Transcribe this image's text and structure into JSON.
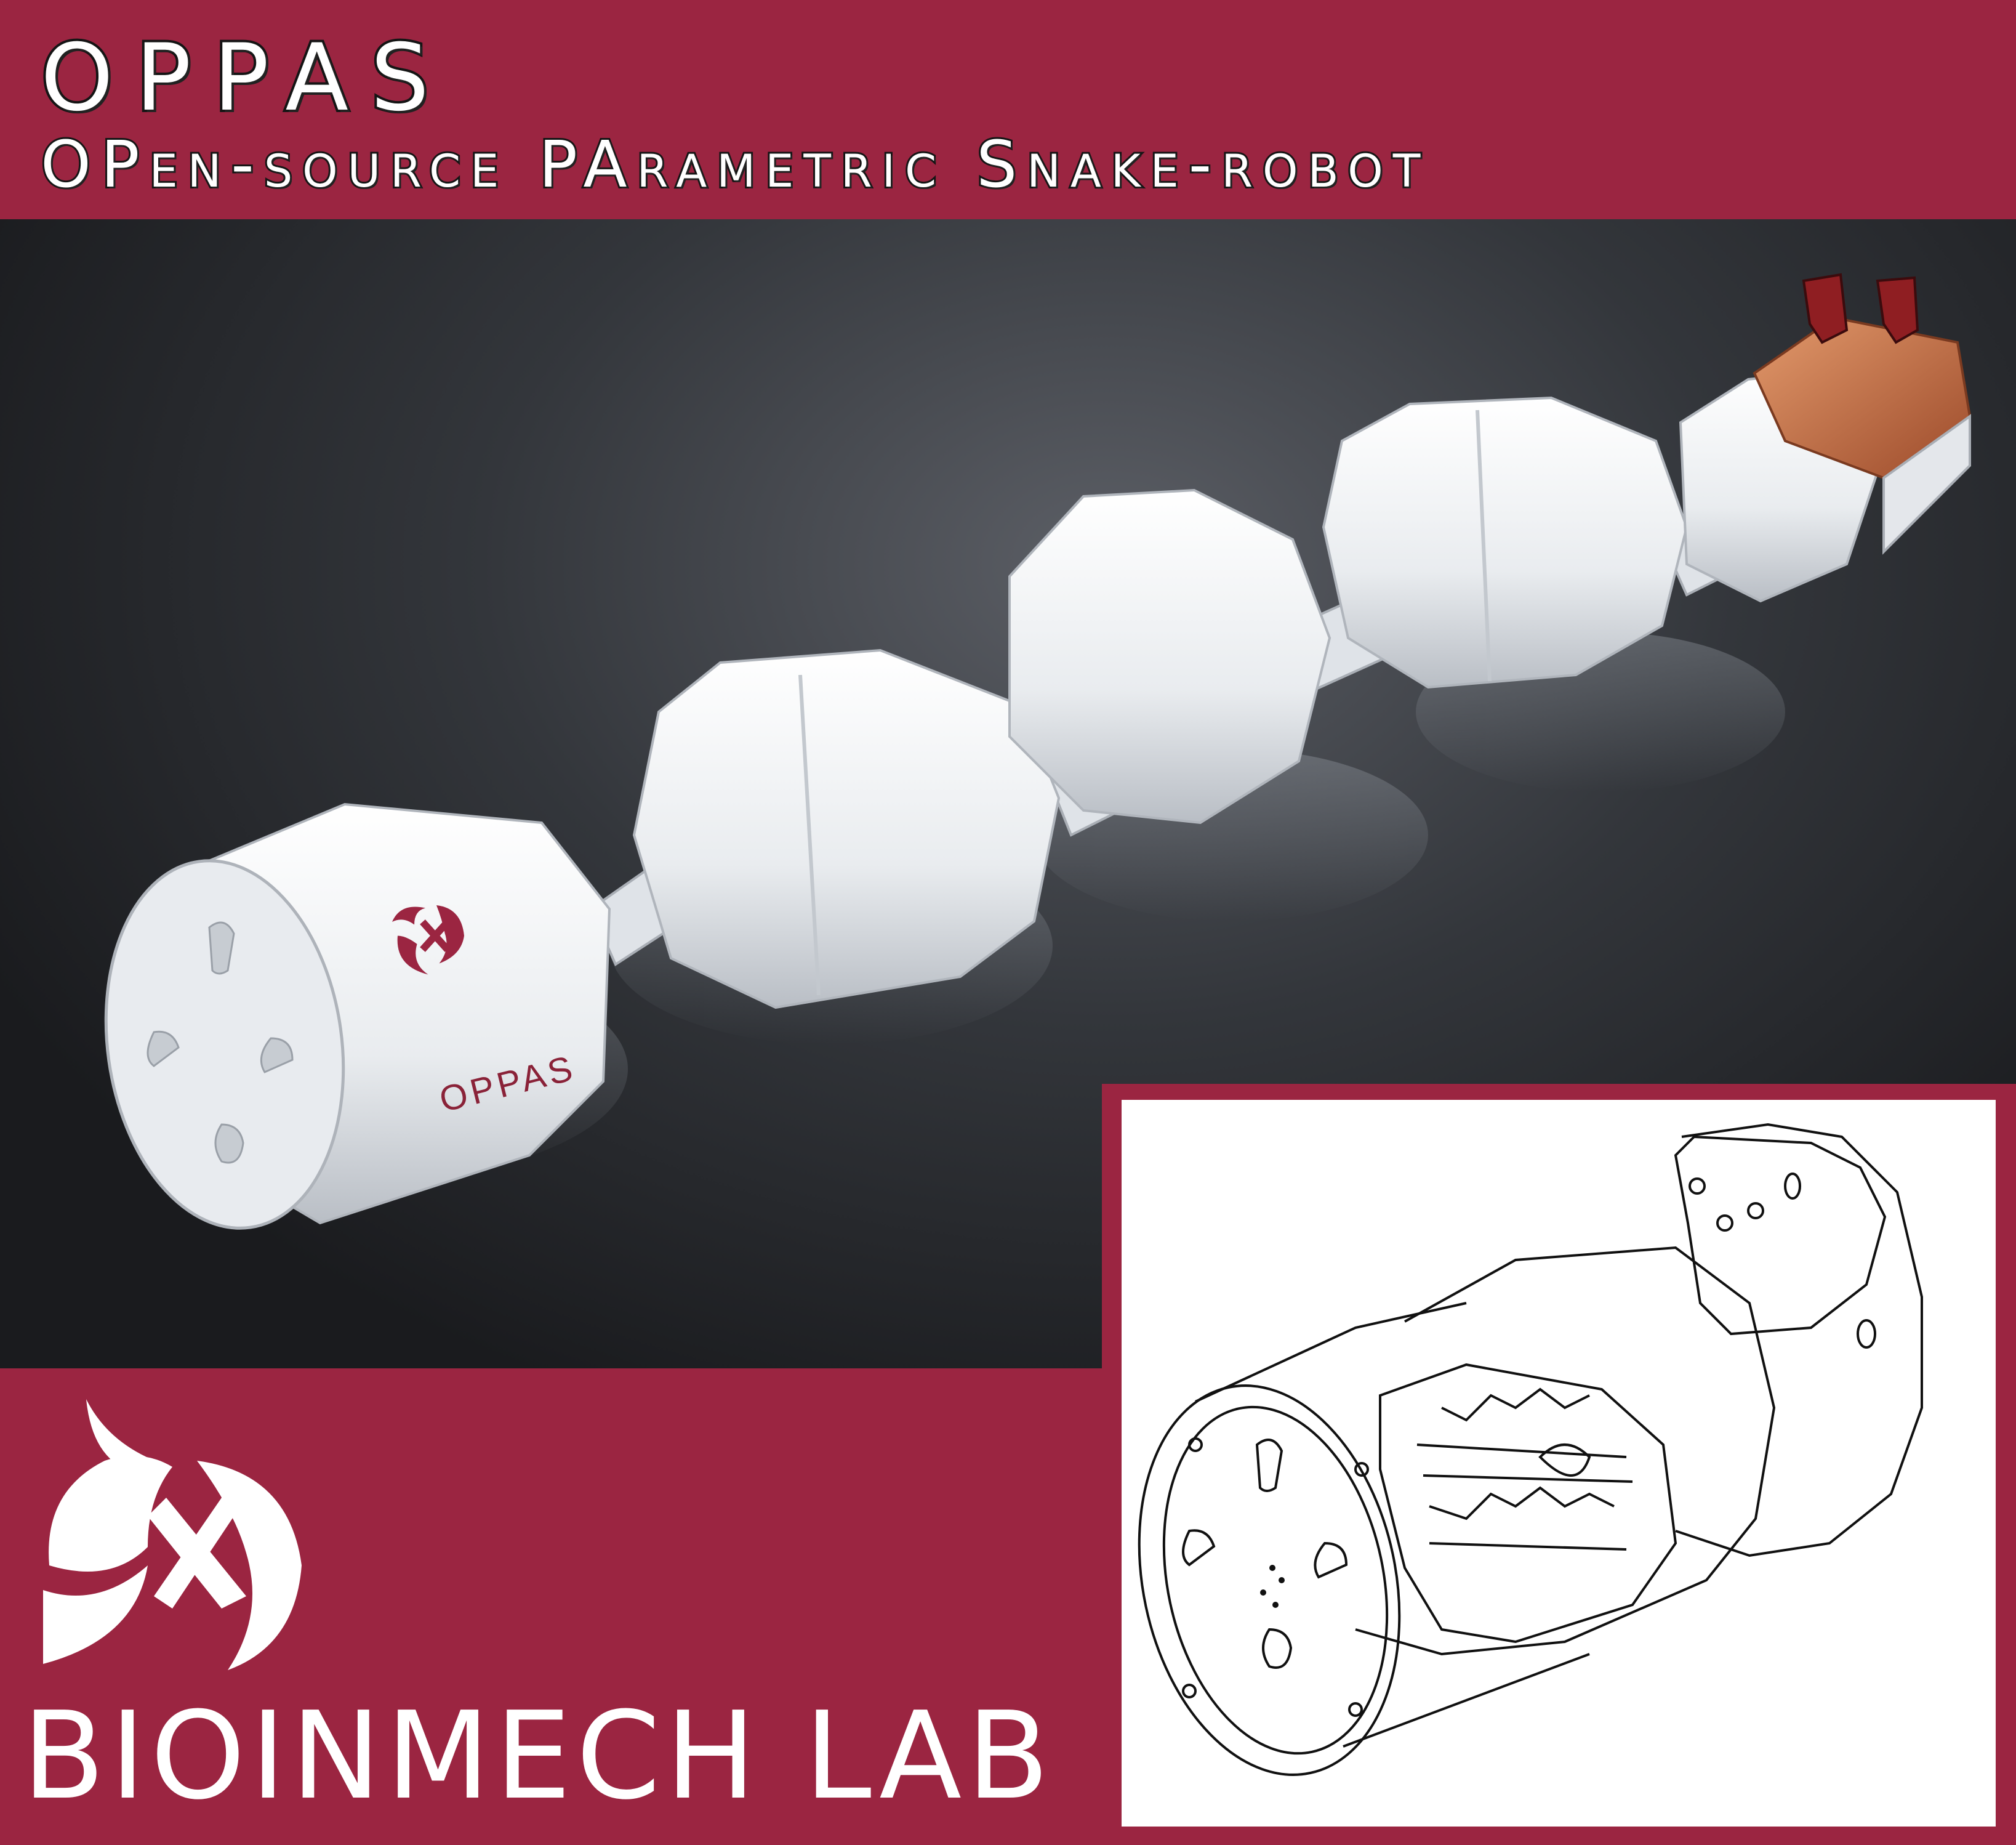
{
  "header": {
    "title": "OPPAS",
    "subtitle": "OPen-source PArametric Snake-robot"
  },
  "render": {
    "module_label": "OPPAS"
  },
  "footer": {
    "lab_name": "BIOINMECH LAB"
  },
  "colors": {
    "brand": "#9b2541",
    "background_dark": "#1e1f22",
    "module_white": "#f2f4f6",
    "head_copper": "#c9744a"
  },
  "icons": {
    "lab_logo": "bioinmech-logo-icon"
  }
}
